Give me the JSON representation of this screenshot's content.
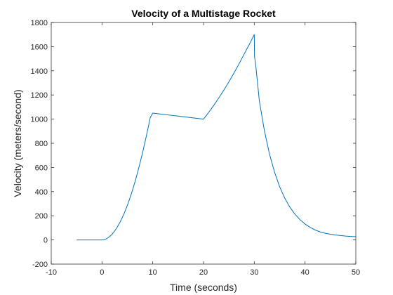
{
  "chart_data": {
    "type": "line",
    "title": "Velocity of a Multistage Rocket",
    "xlabel": "Time (seconds)",
    "ylabel": "Velocity (meters/second)",
    "xlim": [
      -10,
      50
    ],
    "ylim": [
      -200,
      1800
    ],
    "xticks": [
      -10,
      0,
      10,
      20,
      30,
      40,
      50
    ],
    "yticks": [
      -200,
      0,
      200,
      400,
      600,
      800,
      1000,
      1200,
      1400,
      1600,
      1800
    ],
    "grid": false,
    "legend": "none",
    "series": [
      {
        "color": "#0072bd",
        "x": [
          -5,
          -2,
          0,
          0.5,
          1,
          1.5,
          2,
          2.5,
          3,
          3.5,
          4,
          4.5,
          5,
          5.5,
          6,
          6.5,
          7,
          7.5,
          8,
          8.5,
          9,
          9.5,
          10,
          12,
          14,
          16,
          18,
          20,
          21,
          22,
          23,
          24,
          25,
          26,
          27,
          28,
          29,
          30,
          30.05,
          30.3,
          31,
          32,
          33,
          34,
          35,
          36,
          37,
          38,
          39,
          40,
          41,
          42,
          43,
          44,
          45,
          46,
          47,
          48,
          49,
          50
        ],
        "y": [
          0,
          0,
          0,
          3,
          12,
          28,
          48,
          74,
          106,
          143,
          185,
          233,
          287,
          346,
          411,
          481,
          557,
          638,
          724,
          815,
          911,
          1012,
          1050,
          1040,
          1030,
          1020,
          1010,
          1000,
          1055,
          1113,
          1175,
          1240,
          1309,
          1382,
          1458,
          1538,
          1617,
          1700,
          1520,
          1440,
          1150,
          903,
          710,
          560,
          440,
          346,
          272,
          214,
          168,
          132,
          104,
          82,
          66,
          55,
          47,
          41,
          36,
          32,
          29,
          27
        ]
      }
    ]
  }
}
